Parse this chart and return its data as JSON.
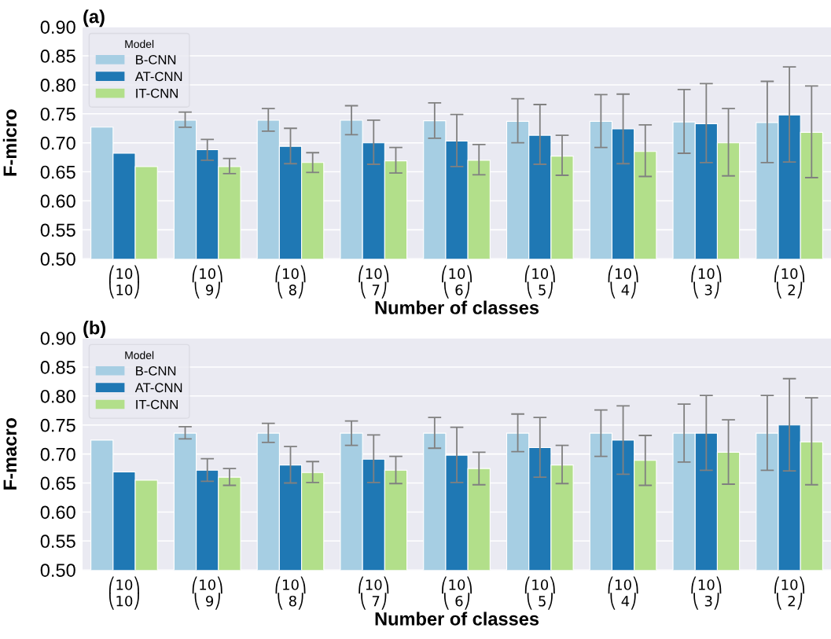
{
  "chart_data": [
    {
      "type": "bar",
      "title": "(a)",
      "xlabel": "Number of classes",
      "ylabel": "F-micro",
      "legend_title": "Model",
      "legend": "top left",
      "grid": "y",
      "categories": [
        "⎛10⎞\n⎝10⎠",
        "⎛10⎞\n⎝ 9⎠",
        "⎛10⎞\n⎝ 8⎠",
        "⎛10⎞\n⎝ 7⎠",
        "⎛10⎞\n⎝ 6⎠",
        "⎛10⎞\n⎝ 5⎠",
        "⎛10⎞\n⎝ 4⎠",
        "⎛10⎞\n⎝ 3⎠",
        "⎛10⎞\n⎝ 2⎠"
      ],
      "ylim": [
        0.5,
        0.9
      ],
      "yticks": [
        {
          "value": 0.5,
          "label": "0.50"
        },
        {
          "value": 0.55,
          "label": "0.55"
        },
        {
          "value": 0.6,
          "label": "0.60"
        },
        {
          "value": 0.65,
          "label": "0.65"
        },
        {
          "value": 0.7,
          "label": "0.70"
        },
        {
          "value": 0.75,
          "label": "0.75"
        },
        {
          "value": 0.8,
          "label": "0.80"
        },
        {
          "value": 0.85,
          "label": "0.85"
        },
        {
          "value": 0.9,
          "label": "0.90"
        }
      ],
      "series": [
        {
          "name": "B-CNN",
          "color": "#a6cee3",
          "values": [
            0.727,
            0.739,
            0.739,
            0.739,
            0.738,
            0.737,
            0.737,
            0.736,
            0.735
          ],
          "errors": [
            null,
            [
              0.727,
              0.753
            ],
            [
              0.72,
              0.759
            ],
            [
              0.714,
              0.764
            ],
            [
              0.708,
              0.769
            ],
            [
              0.7,
              0.776
            ],
            [
              0.692,
              0.783
            ],
            [
              0.682,
              0.792
            ],
            [
              0.666,
              0.806
            ]
          ]
        },
        {
          "name": "AT-CNN",
          "color": "#1f78b4",
          "values": [
            0.682,
            0.688,
            0.694,
            0.7,
            0.703,
            0.713,
            0.724,
            0.733,
            0.748
          ],
          "errors": [
            null,
            [
              0.67,
              0.706
            ],
            [
              0.664,
              0.725
            ],
            [
              0.663,
              0.739
            ],
            [
              0.659,
              0.749
            ],
            [
              0.663,
              0.766
            ],
            [
              0.664,
              0.784
            ],
            [
              0.666,
              0.802
            ],
            [
              0.667,
              0.831
            ]
          ]
        },
        {
          "name": "IT-CNN",
          "color": "#b2df8a",
          "values": [
            0.659,
            0.659,
            0.666,
            0.669,
            0.67,
            0.677,
            0.685,
            0.7,
            0.718
          ],
          "errors": [
            null,
            [
              0.647,
              0.673
            ],
            [
              0.649,
              0.683
            ],
            [
              0.648,
              0.692
            ],
            [
              0.645,
              0.697
            ],
            [
              0.644,
              0.713
            ],
            [
              0.642,
              0.731
            ],
            [
              0.643,
              0.759
            ],
            [
              0.64,
              0.798
            ]
          ]
        }
      ]
    },
    {
      "type": "bar",
      "title": "(b)",
      "xlabel": "Number of classes",
      "ylabel": "F-macro",
      "legend_title": "Model",
      "legend": "top left",
      "grid": "y",
      "categories": [
        "⎛10⎞\n⎝10⎠",
        "⎛10⎞\n⎝ 9⎠",
        "⎛10⎞\n⎝ 8⎠",
        "⎛10⎞\n⎝ 7⎠",
        "⎛10⎞\n⎝ 6⎠",
        "⎛10⎞\n⎝ 5⎠",
        "⎛10⎞\n⎝ 4⎠",
        "⎛10⎞\n⎝ 3⎠",
        "⎛10⎞\n⎝ 2⎠"
      ],
      "ylim": [
        0.5,
        0.9
      ],
      "yticks": [
        {
          "value": 0.5,
          "label": "0.50"
        },
        {
          "value": 0.55,
          "label": "0.55"
        },
        {
          "value": 0.6,
          "label": "0.60"
        },
        {
          "value": 0.65,
          "label": "0.65"
        },
        {
          "value": 0.7,
          "label": "0.70"
        },
        {
          "value": 0.75,
          "label": "0.75"
        },
        {
          "value": 0.8,
          "label": "0.80"
        },
        {
          "value": 0.85,
          "label": "0.85"
        },
        {
          "value": 0.9,
          "label": "0.90"
        }
      ],
      "series": [
        {
          "name": "B-CNN",
          "color": "#a6cee3",
          "values": [
            0.724,
            0.736,
            0.736,
            0.736,
            0.736,
            0.736,
            0.736,
            0.736,
            0.736
          ],
          "errors": [
            null,
            [
              0.726,
              0.747
            ],
            [
              0.72,
              0.753
            ],
            [
              0.715,
              0.757
            ],
            [
              0.71,
              0.763
            ],
            [
              0.704,
              0.769
            ],
            [
              0.696,
              0.776
            ],
            [
              0.686,
              0.786
            ],
            [
              0.672,
              0.801
            ]
          ]
        },
        {
          "name": "AT-CNN",
          "color": "#1f78b4",
          "values": [
            0.669,
            0.672,
            0.681,
            0.691,
            0.698,
            0.711,
            0.724,
            0.736,
            0.75
          ],
          "errors": [
            null,
            [
              0.653,
              0.692
            ],
            [
              0.65,
              0.713
            ],
            [
              0.651,
              0.733
            ],
            [
              0.651,
              0.746
            ],
            [
              0.66,
              0.763
            ],
            [
              0.665,
              0.783
            ],
            [
              0.672,
              0.801
            ],
            [
              0.671,
              0.83
            ]
          ]
        },
        {
          "name": "IT-CNN",
          "color": "#b2df8a",
          "values": [
            0.655,
            0.66,
            0.668,
            0.672,
            0.675,
            0.681,
            0.689,
            0.703,
            0.721
          ],
          "errors": [
            null,
            [
              0.646,
              0.675
            ],
            [
              0.651,
              0.687
            ],
            [
              0.649,
              0.696
            ],
            [
              0.647,
              0.703
            ],
            [
              0.649,
              0.715
            ],
            [
              0.646,
              0.732
            ],
            [
              0.648,
              0.759
            ],
            [
              0.647,
              0.797
            ]
          ]
        }
      ]
    }
  ]
}
